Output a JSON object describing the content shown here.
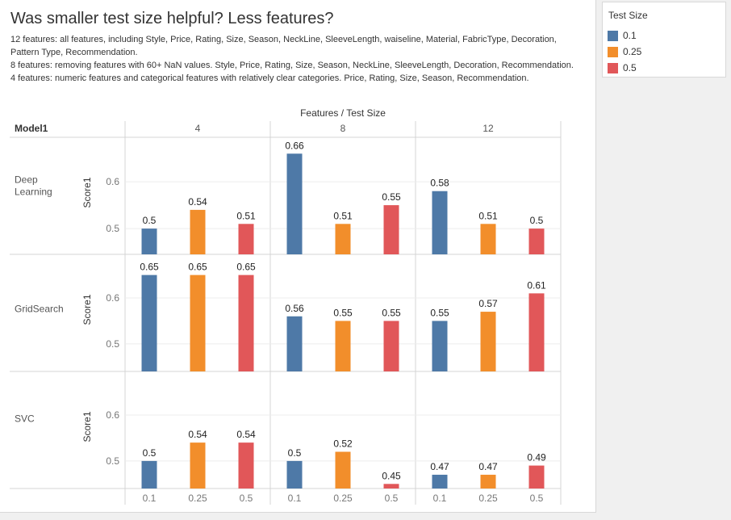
{
  "title": "Was smaller test size helpful? Less features?",
  "subtitle": [
    "12 features: all features, including Style, Price, Rating, Size, Season, NeckLine, SleeveLength, waiseline, Material, FabricType, Decoration, Pattern Type, Recommendation.",
    "8 features: removing features with 60+ NaN values. Style, Price, Rating, Size, Season, NeckLine, SleeveLength, Decoration, Recommendation.",
    "4 features: numeric features and categorical features with relatively clear categories. Price, Rating, Size, Season, Recommendation."
  ],
  "legend": {
    "title": "Test Size",
    "items": [
      {
        "label": "0.1",
        "color": "#4e79a7"
      },
      {
        "label": "0.25",
        "color": "#f28e2b"
      },
      {
        "label": "0.5",
        "color": "#e15759"
      }
    ]
  },
  "chart_data": {
    "type": "bar",
    "column_header": "Features / Test Size",
    "row_header": "Model1",
    "ylabel": "Score1",
    "yticks": [
      0.5,
      0.6
    ],
    "feature_groups": [
      "4",
      "8",
      "12"
    ],
    "test_sizes": [
      "0.1",
      "0.25",
      "0.5"
    ],
    "rows": [
      {
        "model": "Deep Learning",
        "ylim": [
          0.445,
          0.695
        ],
        "groups": [
          [
            0.5,
            0.54,
            0.51
          ],
          [
            0.66,
            0.51,
            0.55
          ],
          [
            0.58,
            0.51,
            0.5
          ]
        ]
      },
      {
        "model": "GridSearch",
        "ylim": [
          0.44,
          0.695
        ],
        "groups": [
          [
            0.65,
            0.65,
            0.65
          ],
          [
            0.56,
            0.55,
            0.55
          ],
          [
            0.55,
            0.57,
            0.61
          ]
        ]
      },
      {
        "model": "SVC",
        "ylim": [
          0.44,
          0.695
        ],
        "groups": [
          [
            0.5,
            0.54,
            0.54
          ],
          [
            0.5,
            0.52,
            0.45
          ],
          [
            0.47,
            0.47,
            0.49
          ]
        ]
      }
    ]
  }
}
